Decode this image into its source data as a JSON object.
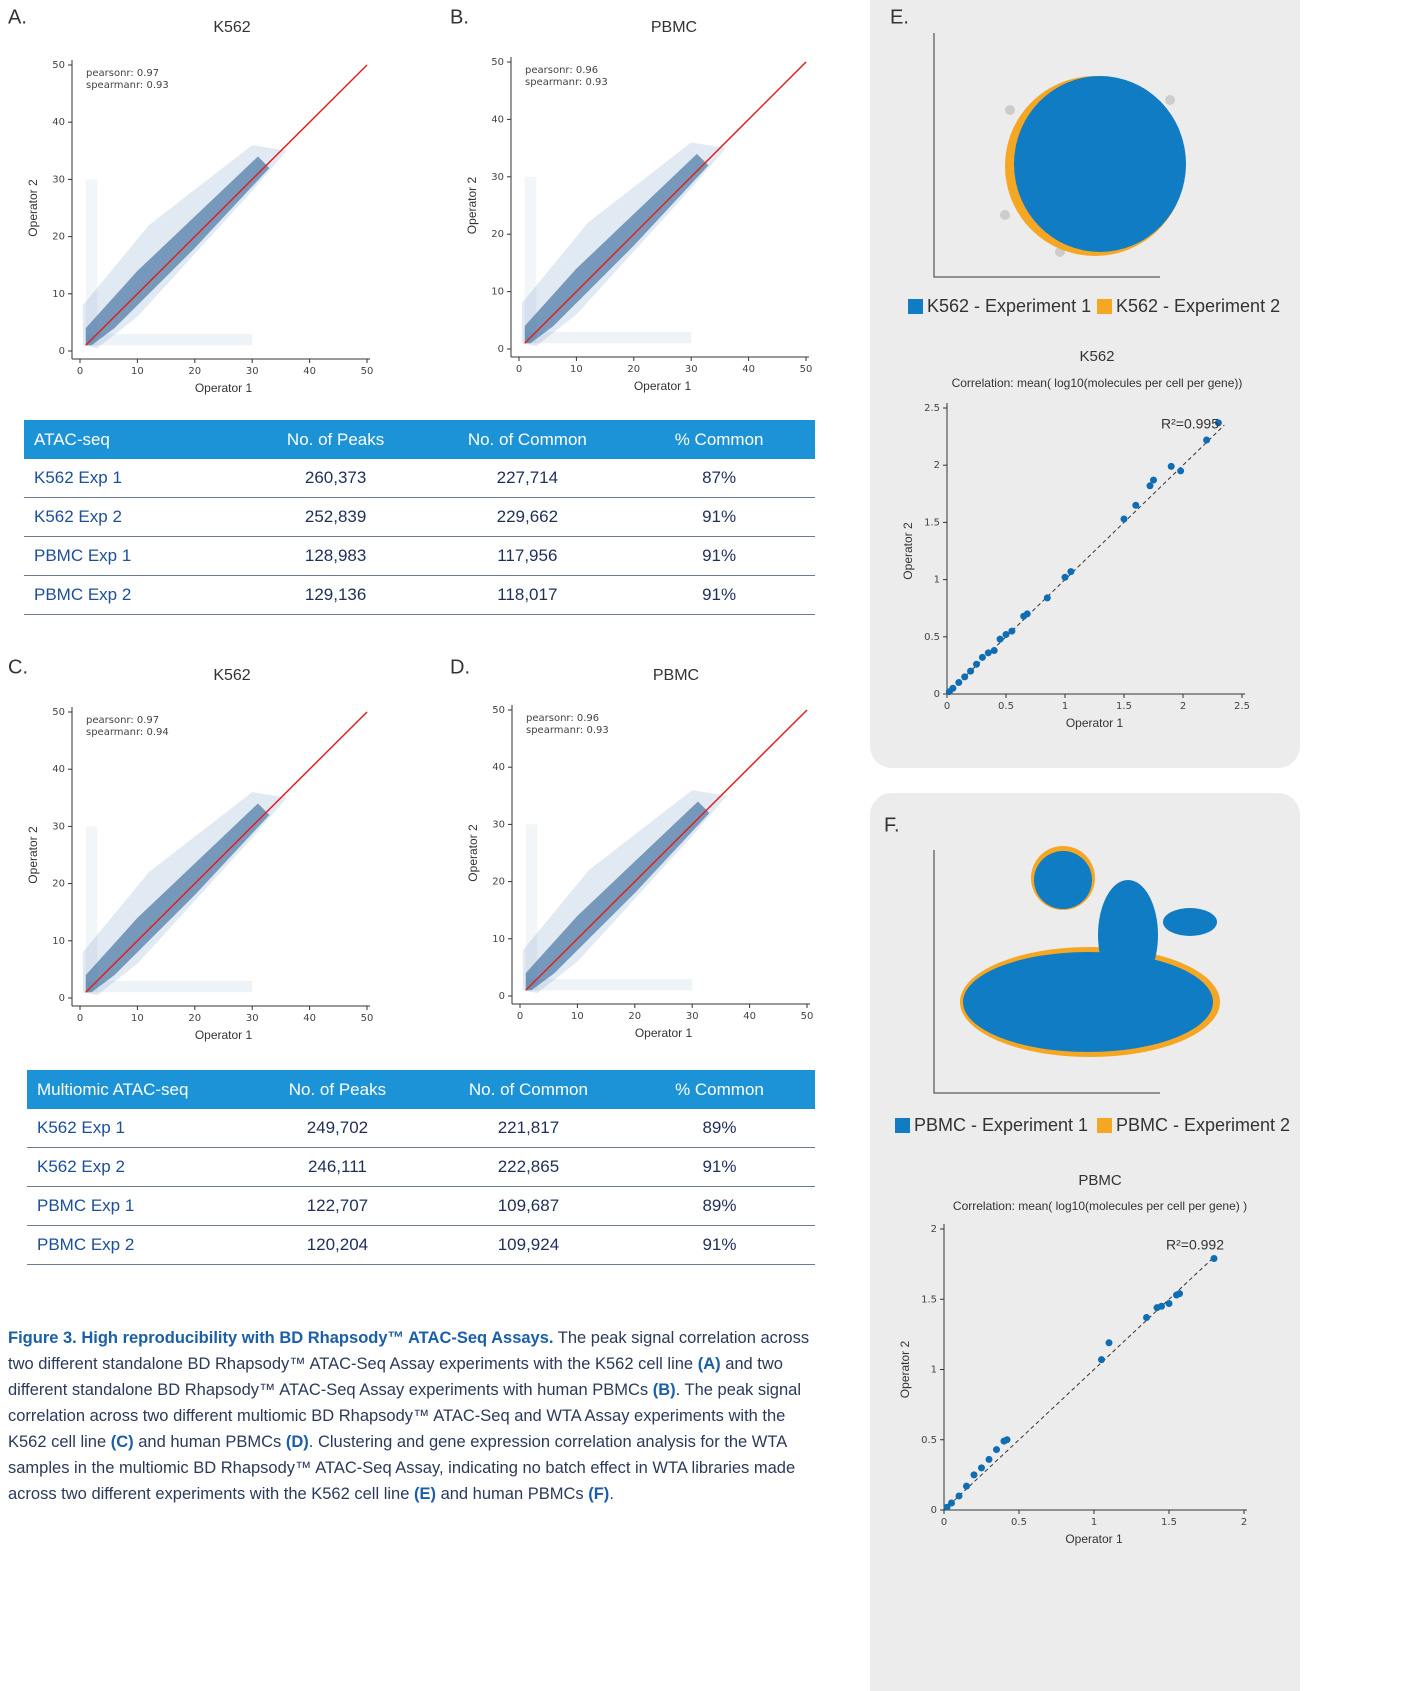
{
  "chart_data": [
    {
      "type": "density",
      "panel": "A.",
      "title": "K562",
      "x_label": "Operator 1",
      "y_label": "Operator 2",
      "annotations": [
        "pearsonr: 0.97",
        "spearmanr: 0.93"
      ],
      "xlim": [
        0,
        50
      ],
      "ylim": [
        0,
        50
      ],
      "xticks": [
        0,
        10,
        20,
        30,
        40,
        50
      ],
      "yticks": [
        0,
        10,
        20,
        30,
        40,
        50
      ],
      "reference_line": {
        "x": [
          1,
          50
        ],
        "y": [
          1,
          50
        ],
        "color": "#e02020"
      }
    },
    {
      "type": "density",
      "panel": "B.",
      "title": "PBMC",
      "x_label": "Operator 1",
      "y_label": "Operator 2",
      "annotations": [
        "pearsonr: 0.96",
        "spearmanr: 0.93"
      ],
      "xlim": [
        0,
        50
      ],
      "ylim": [
        0,
        50
      ],
      "xticks": [
        0,
        10,
        20,
        30,
        40,
        50
      ],
      "yticks": [
        0,
        10,
        20,
        30,
        40,
        50
      ],
      "reference_line": {
        "x": [
          1,
          50
        ],
        "y": [
          1,
          50
        ],
        "color": "#e02020"
      }
    },
    {
      "type": "density",
      "panel": "C.",
      "title": "K562",
      "x_label": "Operator 1",
      "y_label": "Operator 2",
      "annotations": [
        "pearsonr: 0.97",
        "spearmanr: 0.94"
      ],
      "xlim": [
        0,
        50
      ],
      "ylim": [
        0,
        50
      ],
      "xticks": [
        0,
        10,
        20,
        30,
        40,
        50
      ],
      "yticks": [
        0,
        10,
        20,
        30,
        40,
        50
      ],
      "reference_line": {
        "x": [
          1,
          50
        ],
        "y": [
          1,
          50
        ],
        "color": "#e02020"
      }
    },
    {
      "type": "density",
      "panel": "D.",
      "title": "PBMC",
      "x_label": "Operator 1",
      "y_label": "Operator 2",
      "annotations": [
        "pearsonr: 0.96",
        "spearmanr: 0.93"
      ],
      "xlim": [
        0,
        50
      ],
      "ylim": [
        0,
        50
      ],
      "xticks": [
        0,
        10,
        20,
        30,
        40,
        50
      ],
      "yticks": [
        0,
        10,
        20,
        30,
        40,
        50
      ],
      "reference_line": {
        "x": [
          1,
          50
        ],
        "y": [
          1,
          50
        ],
        "color": "#e02020"
      }
    },
    {
      "type": "umap",
      "panel": "E.",
      "legend": [
        {
          "name": "K562 - Experiment 1",
          "color": "#0f7cc4"
        },
        {
          "name": "K562 - Experiment 2",
          "color": "#f5a623"
        }
      ]
    },
    {
      "type": "scatter",
      "title": "K562",
      "subtitle": "Correlation: mean( log10(molecules per cell per gene))",
      "x_label": "Operator 1",
      "y_label": "Operator 2",
      "annotation": "R²=0.995",
      "color": "#0f6db3",
      "xlim": [
        0,
        2.5
      ],
      "ylim": [
        0,
        2.5
      ],
      "xticks": [
        0,
        0.5,
        1,
        1.5,
        2,
        2.5
      ],
      "yticks": [
        0,
        0.5,
        1,
        1.5,
        2,
        2.5
      ],
      "x": [
        2.3,
        2.2,
        1.98,
        1.9,
        1.75,
        1.72,
        1.6,
        1.5,
        1.05,
        1.0,
        0.85,
        0.68,
        0.65,
        0.55,
        0.5,
        0.45,
        0.4,
        0.35,
        0.3,
        0.25,
        0.2,
        0.15,
        0.1,
        0.05,
        0.02
      ],
      "values": [
        2.37,
        2.22,
        1.95,
        1.99,
        1.87,
        1.82,
        1.65,
        1.53,
        1.07,
        1.02,
        0.84,
        0.7,
        0.68,
        0.55,
        0.52,
        0.48,
        0.38,
        0.36,
        0.32,
        0.26,
        0.2,
        0.15,
        0.1,
        0.05,
        0.02
      ],
      "fit_line": {
        "x": [
          0,
          2.35
        ],
        "y": [
          0,
          2.35
        ]
      }
    },
    {
      "type": "umap",
      "panel": "F.",
      "legend": [
        {
          "name": "PBMC - Experiment 1",
          "color": "#0f7cc4"
        },
        {
          "name": "PBMC - Experiment 2",
          "color": "#f5a623"
        }
      ]
    },
    {
      "type": "scatter",
      "title": "PBMC",
      "subtitle": "Correlation: mean( log10(molecules per cell per gene) )",
      "x_label": "Operator 1",
      "y_label": "Operator 2",
      "annotation": "R²=0.992",
      "color": "#0f6db3",
      "xlim": [
        0,
        2
      ],
      "ylim": [
        0,
        2
      ],
      "xticks": [
        0,
        0.5,
        1,
        1.5,
        2
      ],
      "yticks": [
        0,
        0.5,
        1,
        1.5,
        2
      ],
      "x": [
        1.8,
        1.57,
        1.55,
        1.5,
        1.45,
        1.42,
        1.35,
        1.1,
        1.05,
        0.42,
        0.4,
        0.35,
        0.3,
        0.25,
        0.2,
        0.15,
        0.1,
        0.05,
        0.02
      ],
      "values": [
        1.79,
        1.54,
        1.53,
        1.47,
        1.45,
        1.44,
        1.37,
        1.19,
        1.07,
        0.5,
        0.49,
        0.43,
        0.36,
        0.3,
        0.25,
        0.17,
        0.1,
        0.05,
        0.02
      ],
      "fit_line": {
        "x": [
          0,
          1.8
        ],
        "y": [
          0,
          1.8
        ]
      }
    }
  ],
  "tables": [
    {
      "header": [
        "ATAC-seq",
        "No. of Peaks",
        "No. of Common",
        "% Common"
      ],
      "rows": [
        [
          "K562 Exp 1",
          "260,373",
          "227,714",
          "87%"
        ],
        [
          "K562 Exp 2",
          "252,839",
          "229,662",
          "91%"
        ],
        [
          "PBMC Exp 1",
          "128,983",
          "117,956",
          "91%"
        ],
        [
          "PBMC Exp 2",
          "129,136",
          "118,017",
          "91%"
        ]
      ]
    },
    {
      "header": [
        "Multiomic ATAC-seq",
        "No. of Peaks",
        "No. of Common",
        "% Common"
      ],
      "rows": [
        [
          "K562 Exp 1",
          "249,702",
          "221,817",
          "89%"
        ],
        [
          "K562 Exp 2",
          "246,111",
          "222,865",
          "91%"
        ],
        [
          "PBMC Exp 1",
          "122,707",
          "109,687",
          "89%"
        ],
        [
          "PBMC Exp 2",
          "120,204",
          "109,924",
          "91%"
        ]
      ]
    }
  ],
  "caption": [
    {
      "text": "Figure 3. High reproducibility with BD Rhapsody™ ATAC-Seq Assays.",
      "bold": true
    },
    {
      "text": " The peak signal correlation across two different standalone BD Rhapsody™ ATAC-Seq Assay experiments with the K562 cell line ",
      "bold": false
    },
    {
      "text": "(A)",
      "bold": true
    },
    {
      "text": " and two different standalone BD Rhapsody™ ATAC-Seq Assay experiments with human PBMCs ",
      "bold": false
    },
    {
      "text": "(B)",
      "bold": true
    },
    {
      "text": ". The peak signal correlation across two different multiomic BD Rhapsody™ ATAC-Seq and WTA Assay experiments with the K562 cell line ",
      "bold": false
    },
    {
      "text": "(C)",
      "bold": true
    },
    {
      "text": " and human PBMCs ",
      "bold": false
    },
    {
      "text": "(D)",
      "bold": true
    },
    {
      "text": ". Clustering and gene expression correlation analysis for the WTA samples in the multiomic BD Rhapsody™ ATAC-Seq Assay, indicating no batch effect in WTA libraries made across two different experiments with the K562 cell line ",
      "bold": false
    },
    {
      "text": "(E)",
      "bold": true
    },
    {
      "text": " and human PBMCs ",
      "bold": false
    },
    {
      "text": "(F)",
      "bold": true
    },
    {
      "text": ".",
      "bold": false
    }
  ]
}
